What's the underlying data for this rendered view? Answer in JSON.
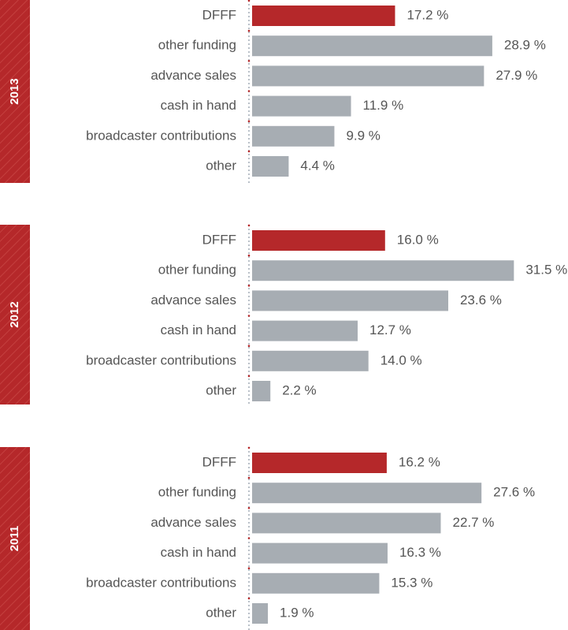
{
  "chart_data": [
    {
      "type": "bar",
      "title": "2013",
      "categories": [
        "DFFF",
        "other funding",
        "advance sales",
        "cash in hand",
        "broadcaster contributions",
        "other"
      ],
      "values": [
        17.2,
        28.9,
        27.9,
        11.9,
        9.9,
        4.4
      ],
      "value_labels": [
        "17.2 %",
        "28.9 %",
        "27.9 %",
        "11.9 %",
        "9.9 %",
        "4.4 %"
      ],
      "colors": [
        "#b5282a",
        "#a7adb3",
        "#a7adb3",
        "#a7adb3",
        "#a7adb3",
        "#a7adb3"
      ]
    },
    {
      "type": "bar",
      "title": "2012",
      "categories": [
        "DFFF",
        "other funding",
        "advance sales",
        "cash in hand",
        "broadcaster contributions",
        "other"
      ],
      "values": [
        16.0,
        31.5,
        23.6,
        12.7,
        14.0,
        2.2
      ],
      "value_labels": [
        "16.0 %",
        "31.5 %",
        "23.6 %",
        "12.7 %",
        "14.0 %",
        "2.2 %"
      ],
      "colors": [
        "#b5282a",
        "#a7adb3",
        "#a7adb3",
        "#a7adb3",
        "#a7adb3",
        "#a7adb3"
      ]
    },
    {
      "type": "bar",
      "title": "2011",
      "categories": [
        "DFFF",
        "other funding",
        "advance sales",
        "cash in hand",
        "broadcaster contributions",
        "other"
      ],
      "values": [
        16.2,
        27.6,
        22.7,
        16.3,
        15.3,
        1.9
      ],
      "value_labels": [
        "16.2 %",
        "27.6 %",
        "22.7 %",
        "16.3 %",
        "15.3 %",
        "1.9 %"
      ],
      "colors": [
        "#b5282a",
        "#a7adb3",
        "#a7adb3",
        "#a7adb3",
        "#a7adb3",
        "#a7adb3"
      ]
    }
  ]
}
